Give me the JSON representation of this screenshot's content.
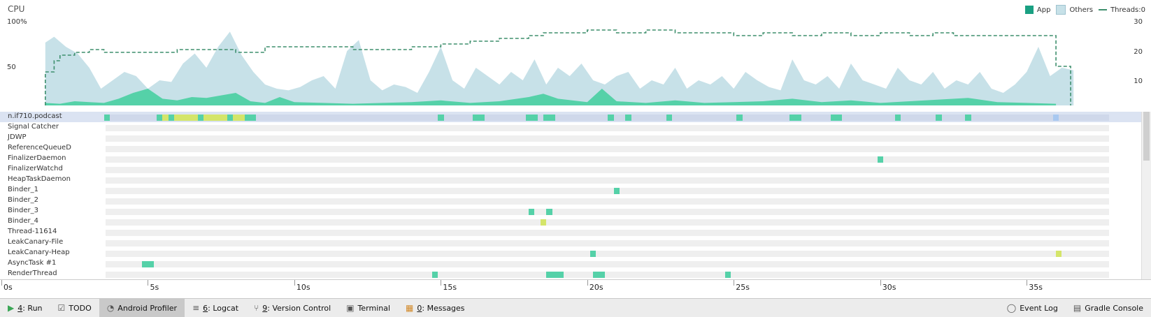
{
  "cpu": {
    "title": "CPU",
    "y_labels": {
      "top": "100%",
      "mid": "50"
    },
    "right_labels": [
      "30",
      "20",
      "10"
    ],
    "legend": {
      "app": "App",
      "others": "Others",
      "threads": "Threads:0"
    },
    "colors": {
      "app": "#55d1a8",
      "others": "#c7e1e8",
      "threads": "#3e8f6d"
    }
  },
  "chart_data": {
    "type": "area",
    "x_unit": "s",
    "xlim": [
      0,
      37
    ],
    "ylim": [
      0,
      100
    ],
    "y2lim": [
      0,
      30
    ],
    "series": [
      {
        "name": "Others",
        "axis": "left",
        "x": [
          1.5,
          1.8,
          2.2,
          2.6,
          3.0,
          3.4,
          3.8,
          4.2,
          4.6,
          5.0,
          5.4,
          5.8,
          6.2,
          6.6,
          7.0,
          7.4,
          7.8,
          8.2,
          8.6,
          9.0,
          9.4,
          9.8,
          10.2,
          10.6,
          11.0,
          11.4,
          11.8,
          12.2,
          12.6,
          13.0,
          13.4,
          13.8,
          14.2,
          14.6,
          15.0,
          15.4,
          15.8,
          16.2,
          16.6,
          17.0,
          17.4,
          17.8,
          18.2,
          18.6,
          19.0,
          19.4,
          19.8,
          20.2,
          20.6,
          21.0,
          21.4,
          21.8,
          22.2,
          22.6,
          23.0,
          23.4,
          23.8,
          24.2,
          24.6,
          25.0,
          25.4,
          25.8,
          26.2,
          26.6,
          27.0,
          27.4,
          27.8,
          28.2,
          28.6,
          29.0,
          29.4,
          29.8,
          30.2,
          30.6,
          31.0,
          31.4,
          31.8,
          32.2,
          32.6,
          33.0,
          33.4,
          33.8,
          34.2,
          34.6,
          35.0,
          35.4,
          35.8,
          36.2,
          36.6
        ],
        "values": [
          75,
          82,
          70,
          62,
          45,
          20,
          30,
          40,
          35,
          20,
          30,
          28,
          50,
          62,
          45,
          70,
          88,
          60,
          40,
          25,
          20,
          18,
          22,
          30,
          35,
          20,
          65,
          78,
          30,
          18,
          25,
          22,
          15,
          40,
          70,
          30,
          20,
          45,
          35,
          25,
          40,
          30,
          55,
          25,
          45,
          35,
          50,
          30,
          25,
          35,
          40,
          20,
          30,
          25,
          45,
          20,
          30,
          25,
          35,
          20,
          40,
          30,
          22,
          18,
          55,
          30,
          25,
          35,
          20,
          50,
          30,
          25,
          20,
          45,
          30,
          25,
          40,
          20,
          30,
          25,
          40,
          20,
          15,
          25,
          40,
          70,
          35,
          45,
          42
        ]
      },
      {
        "name": "App",
        "axis": "left",
        "x": [
          1.5,
          2.0,
          2.5,
          3.0,
          3.5,
          4.0,
          4.5,
          5.0,
          5.5,
          6.0,
          6.5,
          7.0,
          7.5,
          8.0,
          8.5,
          9.0,
          9.5,
          10.0,
          11.0,
          12.0,
          13.0,
          14.0,
          15.0,
          16.0,
          17.0,
          18.0,
          18.5,
          19.0,
          20.0,
          20.5,
          21.0,
          22.0,
          23.0,
          24.0,
          25.0,
          26.0,
          27.0,
          28.0,
          29.0,
          30.0,
          31.0,
          32.0,
          33.0,
          34.0,
          35.0,
          36.0
        ],
        "values": [
          3,
          2,
          5,
          4,
          3,
          8,
          15,
          20,
          8,
          6,
          10,
          9,
          12,
          15,
          5,
          3,
          10,
          4,
          3,
          2,
          3,
          4,
          6,
          3,
          5,
          10,
          14,
          8,
          4,
          20,
          5,
          3,
          6,
          3,
          4,
          5,
          8,
          4,
          6,
          3,
          5,
          7,
          9,
          4,
          3,
          2
        ]
      },
      {
        "name": "Threads:0",
        "axis": "right",
        "x": [
          1.5,
          1.8,
          2.0,
          2.5,
          3.0,
          3.5,
          4.0,
          5.0,
          6.0,
          7.0,
          8.0,
          9.0,
          10.0,
          11.0,
          12.0,
          13.0,
          14.0,
          15.0,
          16.0,
          17.0,
          18.0,
          18.5,
          19.0,
          20.0,
          21.0,
          22.0,
          22.5,
          23.0,
          24.0,
          25.0,
          26.0,
          27.0,
          28.0,
          29.0,
          30.0,
          31.0,
          31.8,
          32.5,
          33.0,
          34.0,
          35.0,
          36.0,
          36.5
        ],
        "values": [
          12,
          16,
          18,
          19,
          20,
          19,
          19,
          19,
          20,
          20,
          19,
          21,
          21,
          21,
          20,
          20,
          21,
          22,
          23,
          24,
          25,
          26,
          26,
          27,
          26,
          27,
          27,
          26,
          26,
          25,
          26,
          25,
          26,
          25,
          26,
          25,
          26,
          25,
          25,
          25,
          25,
          14,
          0
        ]
      }
    ]
  },
  "threads": [
    {
      "name": "n.if710.podcast",
      "highlight": true
    },
    {
      "name": "Signal Catcher"
    },
    {
      "name": "JDWP"
    },
    {
      "name": "ReferenceQueueD"
    },
    {
      "name": "FinalizerDaemon"
    },
    {
      "name": "FinalizerWatchd"
    },
    {
      "name": "HeapTaskDaemon"
    },
    {
      "name": "Binder_1"
    },
    {
      "name": "Binder_2"
    },
    {
      "name": "Binder_3"
    },
    {
      "name": "Binder_4"
    },
    {
      "name": "Thread-11614"
    },
    {
      "name": "LeakCanary-File"
    },
    {
      "name": "LeakCanary-Heap"
    },
    {
      "name": "AsyncTask #1"
    },
    {
      "name": "RenderThread"
    }
  ],
  "thread_activity": [
    {
      "thread": 0,
      "segments": [
        [
          3.5,
          3.7,
          "run"
        ],
        [
          5.3,
          5.5,
          "run"
        ],
        [
          5.5,
          5.7,
          "wait"
        ],
        [
          5.7,
          5.9,
          "run"
        ],
        [
          5.9,
          6.7,
          "wait"
        ],
        [
          6.7,
          6.9,
          "run"
        ],
        [
          6.9,
          7.7,
          "wait"
        ],
        [
          7.7,
          7.9,
          "run"
        ],
        [
          7.9,
          8.3,
          "wait"
        ],
        [
          8.3,
          8.7,
          "run"
        ],
        [
          14.9,
          15.1,
          "run"
        ],
        [
          16.1,
          16.5,
          "run"
        ],
        [
          17.9,
          18.3,
          "run"
        ],
        [
          18.5,
          18.9,
          "run"
        ],
        [
          20.7,
          20.9,
          "run"
        ],
        [
          21.3,
          21.5,
          "run"
        ],
        [
          22.7,
          22.9,
          "run"
        ],
        [
          25.1,
          25.3,
          "run"
        ],
        [
          26.9,
          27.3,
          "run"
        ],
        [
          28.3,
          28.7,
          "run"
        ],
        [
          30.5,
          30.7,
          "run"
        ],
        [
          31.9,
          32.1,
          "run"
        ],
        [
          32.9,
          33.1,
          "run"
        ],
        [
          35.9,
          36.1,
          "sel"
        ]
      ]
    },
    {
      "thread": 4,
      "segments": [
        [
          29.9,
          30.1,
          "run"
        ]
      ]
    },
    {
      "thread": 7,
      "segments": [
        [
          20.9,
          21.1,
          "run"
        ]
      ]
    },
    {
      "thread": 9,
      "segments": [
        [
          18.0,
          18.2,
          "run"
        ],
        [
          18.6,
          18.8,
          "run"
        ]
      ]
    },
    {
      "thread": 10,
      "segments": [
        [
          18.4,
          18.6,
          "wait"
        ]
      ]
    },
    {
      "thread": 13,
      "segments": [
        [
          20.1,
          20.3,
          "run"
        ],
        [
          36.0,
          36.2,
          "wait"
        ]
      ]
    },
    {
      "thread": 14,
      "segments": [
        [
          4.8,
          5.2,
          "run"
        ]
      ]
    },
    {
      "thread": 15,
      "segments": [
        [
          14.7,
          14.9,
          "run"
        ],
        [
          18.6,
          19.2,
          "run"
        ],
        [
          20.2,
          20.6,
          "run"
        ],
        [
          24.7,
          24.9,
          "run"
        ]
      ]
    }
  ],
  "time_axis": {
    "labels": [
      "0s",
      "5s",
      "10s",
      "15s",
      "20s",
      "25s",
      "30s",
      "35s"
    ],
    "values": [
      0,
      5,
      10,
      15,
      20,
      25,
      30,
      35
    ]
  },
  "toolbar": {
    "items": [
      {
        "key": "4",
        "label": ": Run",
        "icon": "run-icon"
      },
      {
        "key": "",
        "label": "TODO",
        "icon": "todo-icon"
      },
      {
        "key": "",
        "label": "Android Profiler",
        "icon": "profiler-icon",
        "active": true
      },
      {
        "key": "6",
        "label": ": Logcat",
        "icon": "logcat-icon"
      },
      {
        "key": "9",
        "label": ": Version Control",
        "icon": "version-control-icon"
      },
      {
        "key": "",
        "label": "Terminal",
        "icon": "terminal-icon"
      },
      {
        "key": "0",
        "label": ": Messages",
        "icon": "messages-icon"
      }
    ],
    "right_items": [
      {
        "label": "Event Log",
        "icon": "event-log-icon"
      },
      {
        "label": "Gradle Console",
        "icon": "gradle-console-icon"
      }
    ]
  }
}
